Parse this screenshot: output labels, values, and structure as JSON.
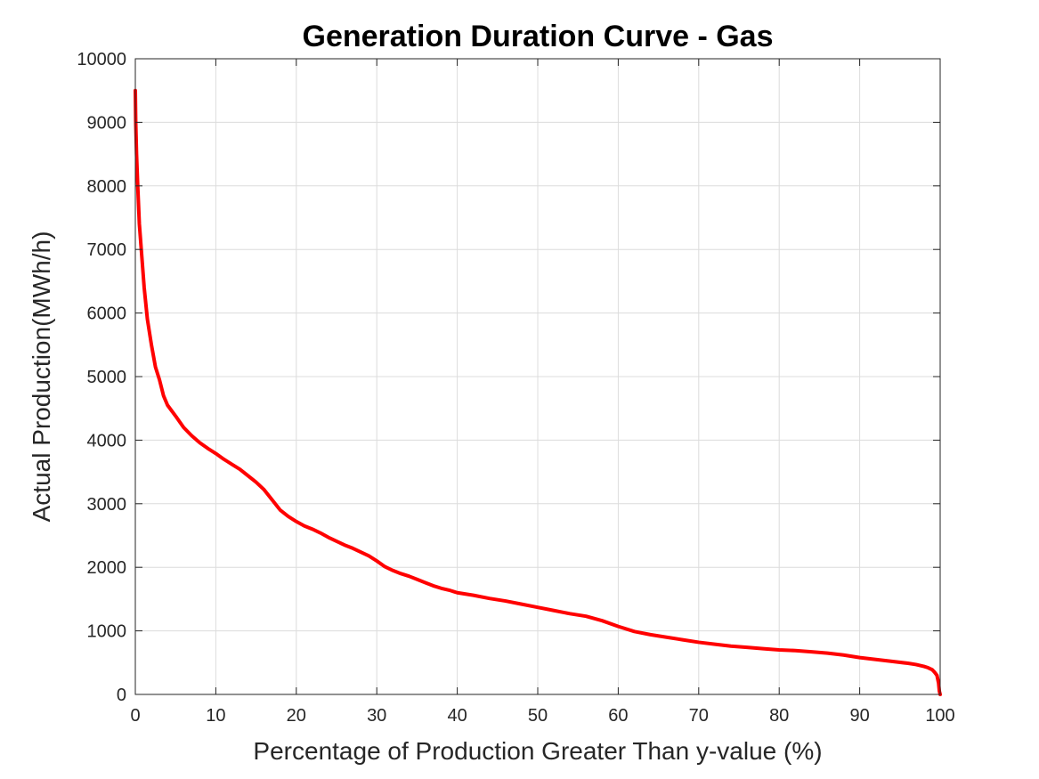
{
  "chart_data": {
    "type": "line",
    "title": "Generation Duration Curve - Gas",
    "xlabel": "Percentage of Production Greater Than y-value (%)",
    "ylabel": "Actual Production(MWh/h)",
    "xlim": [
      0,
      100
    ],
    "ylim": [
      0,
      10000
    ],
    "xticks": [
      "0",
      "10",
      "20",
      "30",
      "40",
      "50",
      "60",
      "70",
      "80",
      "90",
      "100"
    ],
    "yticks": [
      "0",
      "1000",
      "2000",
      "3000",
      "4000",
      "5000",
      "6000",
      "7000",
      "8000",
      "9000",
      "10000"
    ],
    "grid": true,
    "color": "#ff0000",
    "series": [
      {
        "x": [
          0,
          0.05,
          0.15,
          0.3,
          0.5,
          0.8,
          1.1,
          1.5,
          2,
          2.5,
          3,
          3.5,
          4,
          5,
          6,
          7,
          8,
          9,
          10,
          11,
          12,
          13,
          14,
          15,
          16,
          17,
          18,
          19,
          20,
          21,
          22,
          23,
          24,
          25,
          26,
          27,
          28,
          29,
          30,
          31,
          32,
          33,
          34,
          35,
          36,
          37,
          38,
          39,
          40,
          42,
          44,
          46,
          48,
          50,
          52,
          54,
          56,
          58,
          60,
          62,
          64,
          66,
          68,
          70,
          72,
          74,
          76,
          78,
          80,
          82,
          84,
          86,
          88,
          90,
          92,
          94,
          96,
          97,
          98,
          98.5,
          99,
          99.3,
          99.6,
          99.8,
          99.9,
          100
        ],
        "y": [
          9500,
          9000,
          8500,
          8000,
          7400,
          6900,
          6400,
          5900,
          5500,
          5150,
          4950,
          4700,
          4550,
          4380,
          4200,
          4070,
          3960,
          3870,
          3790,
          3700,
          3620,
          3540,
          3440,
          3340,
          3220,
          3060,
          2900,
          2800,
          2720,
          2650,
          2600,
          2540,
          2470,
          2410,
          2350,
          2300,
          2240,
          2180,
          2100,
          2010,
          1950,
          1900,
          1860,
          1810,
          1760,
          1710,
          1670,
          1640,
          1600,
          1560,
          1510,
          1470,
          1420,
          1370,
          1320,
          1270,
          1230,
          1160,
          1070,
          990,
          940,
          900,
          860,
          820,
          790,
          760,
          740,
          720,
          700,
          690,
          670,
          650,
          620,
          580,
          550,
          520,
          490,
          470,
          440,
          420,
          390,
          350,
          300,
          180,
          50,
          0
        ]
      }
    ]
  }
}
